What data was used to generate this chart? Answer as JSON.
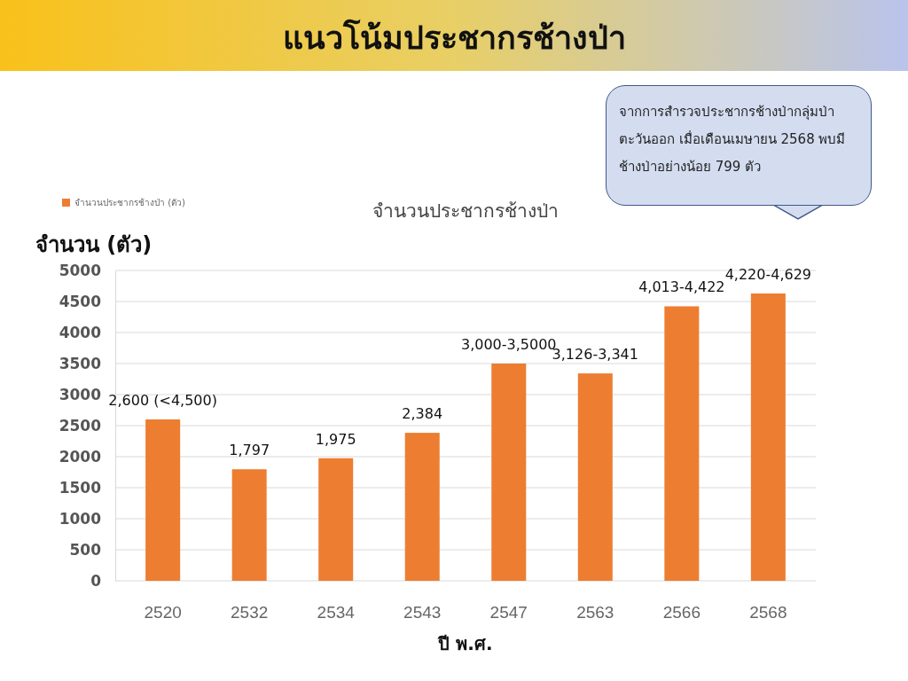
{
  "chart_data": {
    "type": "bar",
    "title": "แนวโน้มประชากรช้างป่า",
    "subtitle": "จำนวนประชากรช้างป่า",
    "ylabel": "จำนวน (ตัว)",
    "xlabel": "ปี พ.ศ.",
    "categories": [
      "2520",
      "2532",
      "2534",
      "2543",
      "2547",
      "2563",
      "2566",
      "2568"
    ],
    "series": [
      {
        "name": "จำนวนประชากรช้างป่า (ตัว)",
        "color": "#ed7d31",
        "values": [
          2600,
          1797,
          1975,
          2384,
          3500,
          3341,
          4422,
          4629
        ],
        "value_labels": [
          "2,600 (<4,500)",
          "1,797",
          "1,975",
          "2,384",
          "3,000-3,5000",
          "3,126-3,341",
          "4,013-4,422",
          "4,220-4,629"
        ]
      }
    ],
    "ylim": [
      0,
      5000
    ],
    "yticks": [
      0,
      500,
      1000,
      1500,
      2000,
      2500,
      3000,
      3500,
      4000,
      4500,
      5000
    ],
    "grid": "y",
    "legend": "top left",
    "annotations": [
      "จากการสำรวจประชากรช้างป่ากลุ่มป่าตะวันออก เมื่อเดือนเมษายน 2568 พบมีช้างป่าอย่างน้อย 799 ตัว"
    ]
  }
}
